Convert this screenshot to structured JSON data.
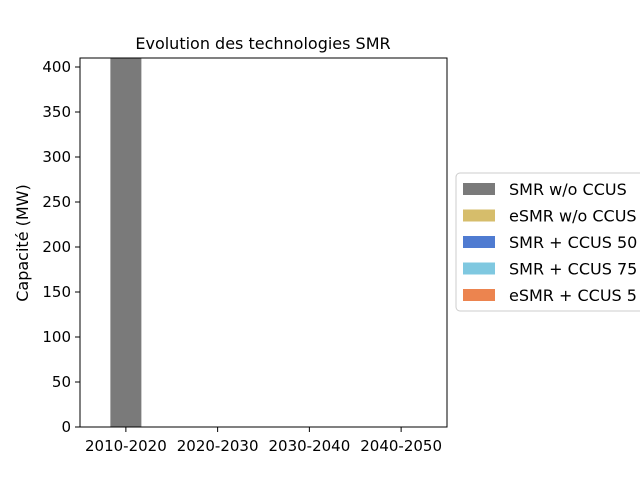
{
  "chart_data": {
    "type": "bar",
    "stacked": true,
    "title": "Evolution des technologies SMR",
    "xlabel": "",
    "ylabel": "Capacité (MW)",
    "categories": [
      "2010-2020",
      "2020-2030",
      "2030-2040",
      "2040-2050"
    ],
    "ylim": [
      0,
      410
    ],
    "yticks": [
      0,
      50,
      100,
      150,
      200,
      250,
      300,
      350,
      400
    ],
    "grid": false,
    "legend_position": "right (outside, cut off)",
    "series": [
      {
        "name": "SMR w/o CCUS",
        "color": "#7a7a7a",
        "values": [
          410,
          0,
          0,
          0
        ]
      },
      {
        "name": "eSMR w/o CCUS",
        "color": "#d6bd6b",
        "values": [
          0,
          0,
          0,
          0
        ]
      },
      {
        "name": "SMR + CCUS 50",
        "color": "#4f7bd1",
        "values": [
          0,
          0,
          0,
          0
        ]
      },
      {
        "name": "SMR + CCUS 75",
        "color": "#7fc8e0",
        "values": [
          0,
          0,
          0,
          0
        ]
      },
      {
        "name": "eSMR + CCUS 5",
        "color": "#ec844f",
        "values": [
          0,
          0,
          0,
          0
        ]
      }
    ]
  }
}
